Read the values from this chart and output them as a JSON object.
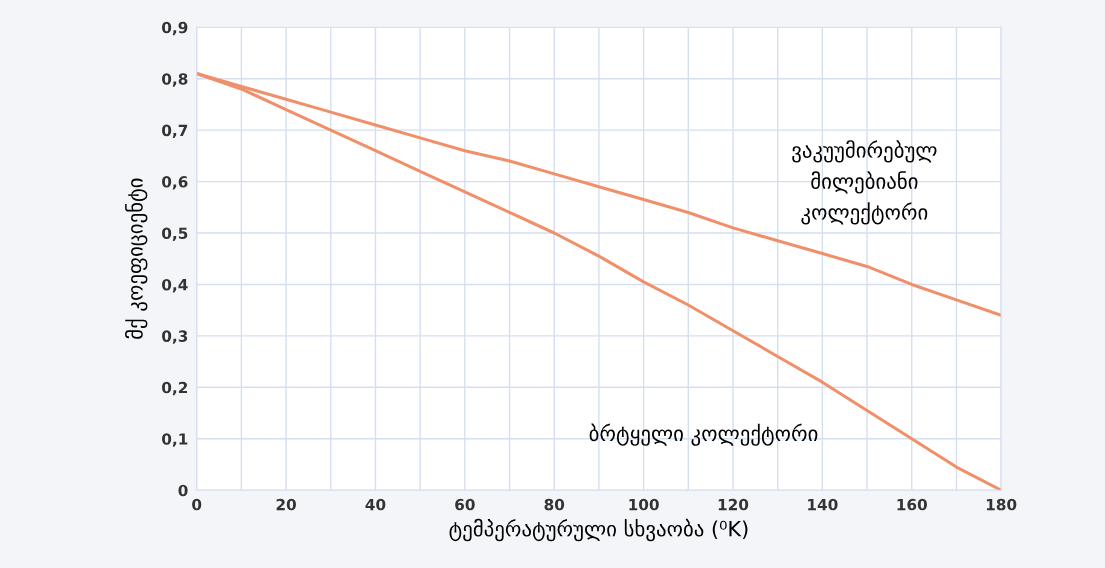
{
  "chart_data": {
    "type": "line",
    "xlabel": "ტემპერატურული სხვაობა (⁰K)",
    "ylabel": "მქ კოეფიციენტი",
    "x": [
      0,
      10,
      20,
      30,
      40,
      50,
      60,
      70,
      80,
      90,
      100,
      110,
      120,
      130,
      140,
      150,
      160,
      170,
      180
    ],
    "series": [
      {
        "name": "ვაკუუმირებულ\nმილებიანი\nკოლექტორი",
        "color": "#f0906a",
        "values": [
          0.81,
          0.785,
          0.76,
          0.735,
          0.71,
          0.685,
          0.66,
          0.64,
          0.615,
          0.59,
          0.565,
          0.54,
          0.51,
          0.485,
          0.46,
          0.435,
          0.4,
          0.37,
          0.34
        ]
      },
      {
        "name": "ბრტყელი კოლექტორი",
        "color": "#f0906a",
        "values": [
          0.81,
          0.78,
          0.74,
          0.7,
          0.66,
          0.62,
          0.58,
          0.54,
          0.5,
          0.455,
          0.405,
          0.36,
          0.31,
          0.26,
          0.21,
          0.155,
          0.1,
          0.045,
          0.0
        ]
      }
    ],
    "xlim": [
      0,
      180
    ],
    "xticks": [
      0,
      20,
      40,
      60,
      80,
      100,
      120,
      140,
      160,
      180
    ],
    "ylim": [
      0,
      0.9
    ],
    "yticks": [
      0,
      {
        "value": 0.1,
        "label": "0,1"
      },
      {
        "value": 0.2,
        "label": "0,2"
      },
      {
        "value": 0.3,
        "label": "0,3"
      },
      {
        "value": 0.4,
        "label": "0,4"
      },
      {
        "value": 0.5,
        "label": "0,5"
      },
      {
        "value": 0.6,
        "label": "0,6"
      },
      {
        "value": 0.7,
        "label": "0,7"
      },
      {
        "value": 0.8,
        "label": "0,8"
      },
      {
        "value": 0.9,
        "label": "0,9"
      }
    ],
    "grid": true,
    "marker": "none",
    "line_style": "solid",
    "legend": false
  }
}
